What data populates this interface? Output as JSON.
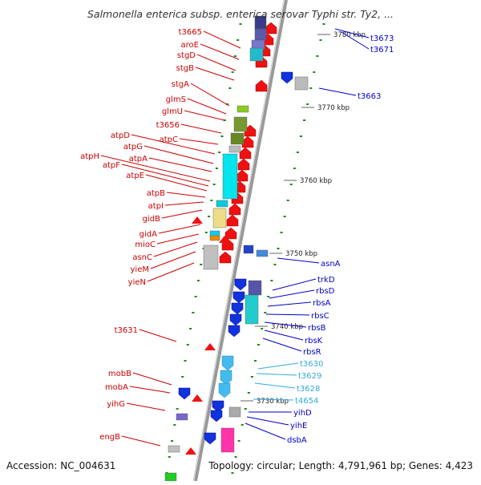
{
  "title": "Salmonella enterica subsp. enterica serovar Typhi str. Ty2, ...",
  "footer": {
    "accession": "Accession: NC_004631",
    "summary": "Topology: circular; Length: 4,791,961 bp; Genes: 4,423"
  },
  "colors": {
    "forward_label": "#cc0000",
    "reverse_label": "#0000cc",
    "rna_label": "#33aadd",
    "backbone": "#999999",
    "tick": "#1a8a1a"
  },
  "scale_labels": [
    "3780 kbp",
    "3770 kbp",
    "3760 kbp",
    "3750 kbp",
    "3740 kbp",
    "3730 kbp"
  ],
  "left_genes": [
    "t3665",
    "aroE",
    "stgD",
    "stgB",
    "stgA",
    "glmS",
    "glmU",
    "t3656",
    "atpC",
    "atpD",
    "atpG",
    "atpA",
    "atpH",
    "atpF",
    "atpE",
    "atpB",
    "atpI",
    "gidB",
    "gidA",
    "mioC",
    "asnC",
    "yieM",
    "yieN",
    "t3631",
    "mobB",
    "mobA",
    "yihG",
    "engB"
  ],
  "right_genes": [
    "t3673",
    "t3671",
    "t3663",
    "asnA",
    "trkD",
    "rbsD",
    "rbsA",
    "rbsC",
    "rbsB",
    "rbsK",
    "rbsR",
    "t3630",
    "t3629",
    "t3628",
    "t4654",
    "yihD",
    "yihE",
    "dsbA"
  ]
}
